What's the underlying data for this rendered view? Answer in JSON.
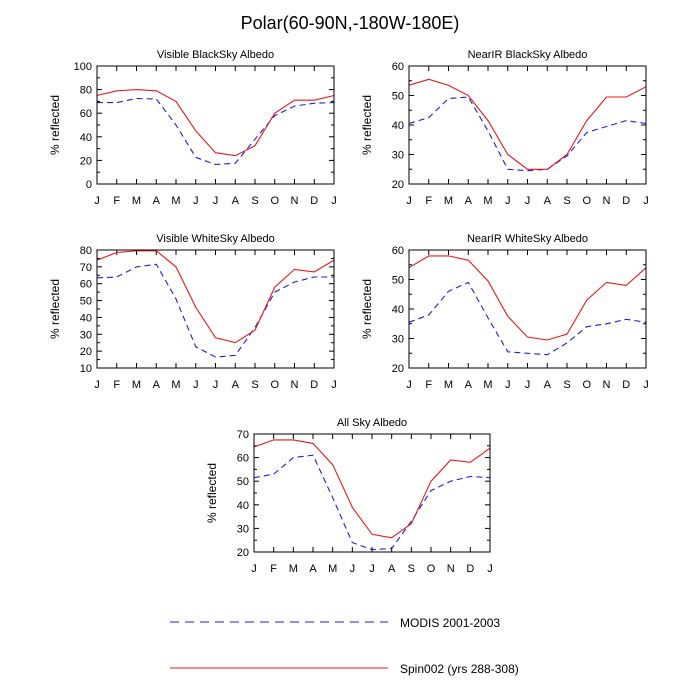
{
  "figure": {
    "title": "Polar(60-90N,-180W-180E)"
  },
  "legend": {
    "entries": [
      {
        "label": "MODIS 2001-2003",
        "color": "#1f1fd6",
        "style": "dashed"
      },
      {
        "label": "Spin002 (yrs 288-308)",
        "color": "#e31a1c",
        "style": "solid"
      }
    ]
  },
  "chart_data": [
    {
      "type": "line",
      "title": "Visible BlackSky Albedo",
      "ylabel": "% reflected",
      "xlabel": "",
      "categories": [
        "J",
        "F",
        "M",
        "A",
        "M",
        "J",
        "J",
        "A",
        "S",
        "O",
        "N",
        "D",
        "J"
      ],
      "ylim": [
        0,
        100
      ],
      "yticks": [
        0,
        20,
        40,
        60,
        80,
        100
      ],
      "series": [
        {
          "name": "MODIS 2001-2003",
          "values": [
            69,
            69,
            72.5,
            72,
            50,
            22.5,
            16.5,
            17.5,
            38,
            58,
            66,
            68.5,
            69
          ]
        },
        {
          "name": "Spin002 (yrs 288-308)",
          "values": [
            75,
            79,
            80,
            79,
            70,
            45,
            26.5,
            24,
            32.5,
            60,
            71,
            71,
            75
          ]
        }
      ]
    },
    {
      "type": "line",
      "title": "NearIR BlackSky Albedo",
      "ylabel": "% reflected",
      "xlabel": "",
      "categories": [
        "J",
        "F",
        "M",
        "A",
        "M",
        "J",
        "J",
        "A",
        "S",
        "O",
        "N",
        "D",
        "J"
      ],
      "ylim": [
        20,
        60
      ],
      "yticks": [
        20,
        30,
        40,
        50,
        60
      ],
      "series": [
        {
          "name": "MODIS 2001-2003",
          "values": [
            40.5,
            42.5,
            49,
            49.5,
            38,
            25,
            24.5,
            25,
            29.5,
            37.5,
            39.5,
            41.5,
            40.5
          ]
        },
        {
          "name": "Spin002 (yrs 288-308)",
          "values": [
            53.5,
            55.5,
            53.5,
            50,
            41.5,
            30,
            25,
            25,
            30,
            41.5,
            49.5,
            49.5,
            53
          ]
        }
      ]
    },
    {
      "type": "line",
      "title": "Visible WhiteSky Albedo",
      "ylabel": "% reflected",
      "xlabel": "",
      "categories": [
        "J",
        "F",
        "M",
        "A",
        "M",
        "J",
        "J",
        "A",
        "S",
        "O",
        "N",
        "D",
        "J"
      ],
      "ylim": [
        10,
        80
      ],
      "yticks": [
        10,
        20,
        30,
        40,
        50,
        60,
        70,
        80
      ],
      "series": [
        {
          "name": "MODIS 2001-2003",
          "values": [
            63.5,
            64,
            70,
            71.5,
            51,
            22.5,
            16.5,
            17.5,
            34,
            55,
            61,
            64,
            64
          ]
        },
        {
          "name": "Spin002 (yrs 288-308)",
          "values": [
            74,
            78.5,
            79.5,
            79.5,
            70,
            46,
            28,
            25,
            32.5,
            58,
            68.5,
            67,
            74
          ]
        }
      ]
    },
    {
      "type": "line",
      "title": "NearIR WhiteSky Albedo",
      "ylabel": "% reflected",
      "xlabel": "",
      "categories": [
        "J",
        "F",
        "M",
        "A",
        "M",
        "J",
        "J",
        "A",
        "S",
        "O",
        "N",
        "D",
        "J"
      ],
      "ylim": [
        20,
        60
      ],
      "yticks": [
        20,
        30,
        40,
        50,
        60
      ],
      "series": [
        {
          "name": "MODIS 2001-2003",
          "values": [
            35.5,
            38,
            46,
            49,
            37,
            25.5,
            25,
            24.5,
            28.5,
            34,
            35,
            36.5,
            35.5
          ]
        },
        {
          "name": "Spin002 (yrs 288-308)",
          "values": [
            54,
            58,
            58,
            56.5,
            49.5,
            37.5,
            30.5,
            29.5,
            31.5,
            43,
            49,
            48,
            54
          ]
        }
      ]
    },
    {
      "type": "line",
      "title": "All Sky Albedo",
      "ylabel": "% reflected",
      "xlabel": "",
      "categories": [
        "J",
        "F",
        "M",
        "A",
        "M",
        "J",
        "J",
        "A",
        "S",
        "O",
        "N",
        "D",
        "J"
      ],
      "ylim": [
        20,
        70
      ],
      "yticks": [
        20,
        30,
        40,
        50,
        60,
        70
      ],
      "series": [
        {
          "name": "MODIS 2001-2003",
          "values": [
            51.5,
            53,
            60,
            61,
            43,
            24,
            21,
            21.5,
            33,
            46,
            50,
            52,
            51.5
          ]
        },
        {
          "name": "Spin002 (yrs 288-308)",
          "values": [
            64.5,
            67.5,
            67.5,
            66,
            57,
            39,
            27.5,
            26,
            32,
            50,
            59,
            58,
            64
          ]
        }
      ]
    }
  ]
}
